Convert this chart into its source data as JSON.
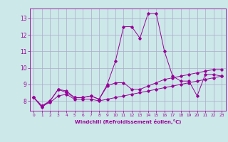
{
  "xlabel": "Windchill (Refroidissement éolien,°C)",
  "ylabel": "",
  "background_color": "#cce8e8",
  "line_color": "#990099",
  "grid_color": "#aaaacc",
  "xlim": [
    -0.5,
    23.5
  ],
  "ylim": [
    7.4,
    13.6
  ],
  "yticks": [
    8,
    9,
    10,
    11,
    12,
    13
  ],
  "xticks": [
    0,
    1,
    2,
    3,
    4,
    5,
    6,
    7,
    8,
    9,
    10,
    11,
    12,
    13,
    14,
    15,
    16,
    17,
    18,
    19,
    20,
    21,
    22,
    23
  ],
  "series": [
    [
      8.2,
      7.6,
      8.0,
      8.7,
      8.6,
      8.2,
      8.2,
      8.3,
      8.1,
      9.0,
      10.4,
      12.5,
      12.5,
      11.8,
      13.3,
      13.3,
      11.0,
      9.5,
      9.2,
      9.2,
      8.3,
      9.6,
      9.6,
      9.5
    ],
    [
      8.2,
      7.7,
      8.0,
      8.7,
      8.5,
      8.2,
      8.2,
      8.3,
      8.1,
      8.9,
      9.1,
      9.1,
      8.7,
      8.7,
      8.9,
      9.1,
      9.3,
      9.4,
      9.5,
      9.6,
      9.7,
      9.8,
      9.9,
      9.9
    ],
    [
      8.2,
      7.7,
      7.9,
      8.3,
      8.4,
      8.1,
      8.1,
      8.1,
      8.0,
      8.1,
      8.2,
      8.3,
      8.4,
      8.5,
      8.6,
      8.7,
      8.8,
      8.9,
      9.0,
      9.1,
      9.2,
      9.3,
      9.4,
      9.5
    ]
  ]
}
